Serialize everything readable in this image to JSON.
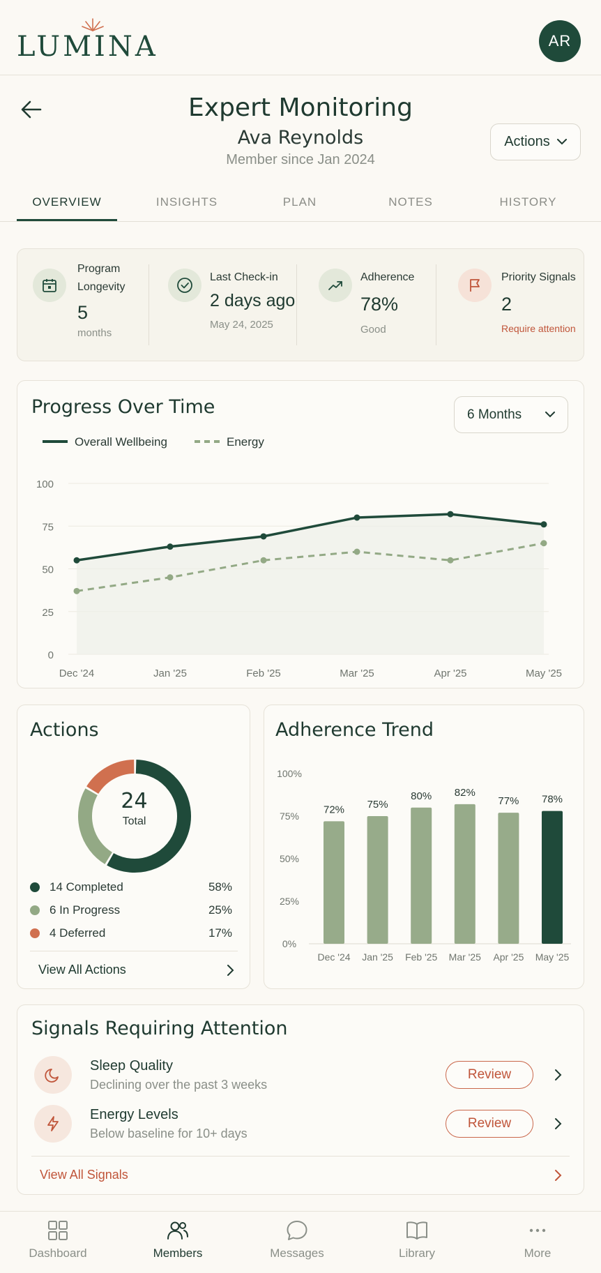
{
  "app": {
    "logo": "LUMINA",
    "avatar_initials": "AR"
  },
  "header": {
    "title": "Expert Monitoring",
    "member_name": "Ava Reynolds",
    "member_since": "Member since Jan 2024",
    "actions_label": "Actions"
  },
  "tabs": [
    {
      "label": "OVERVIEW",
      "active": true
    },
    {
      "label": "INSIGHTS",
      "active": false
    },
    {
      "label": "PLAN",
      "active": false
    },
    {
      "label": "NOTES",
      "active": false
    },
    {
      "label": "HISTORY",
      "active": false
    }
  ],
  "stats": [
    {
      "label_line1": "Program",
      "label_line2": "Longevity",
      "value": "5",
      "sub": "months",
      "icon": "calendar-icon"
    },
    {
      "label": "Last Check-in",
      "value": "2 days ago",
      "sub": "May 24, 2025",
      "icon": "check-circle-icon"
    },
    {
      "label": "Adherence",
      "value": "78%",
      "sub": "Good",
      "icon": "trending-up-icon"
    },
    {
      "label": "Priority Signals",
      "value": "2",
      "sub": "Require attention",
      "icon": "flag-icon"
    }
  ],
  "progress": {
    "title": "Progress Over Time",
    "range_label": "6 Months",
    "legend": [
      "Overall Wellbeing",
      "Energy"
    ]
  },
  "actions_card": {
    "title": "Actions",
    "total": "24",
    "total_label": "Total",
    "items": [
      {
        "label": "14 Completed",
        "pct": "58%",
        "color": "#1F4A3A"
      },
      {
        "label": "6 In Progress",
        "pct": "25%",
        "color": "#93A985"
      },
      {
        "label": "4 Deferred",
        "pct": "17%",
        "color": "#D0704F"
      }
    ],
    "view_all": "View All Actions"
  },
  "trend": {
    "title": "Adherence Trend"
  },
  "signals": {
    "title": "Signals Requiring Attention",
    "items": [
      {
        "title": "Sleep Quality",
        "sub": "Declining over the past 3 weeks",
        "button": "Review",
        "icon": "moon-icon"
      },
      {
        "title": "Energy Levels",
        "sub": "Below baseline for 10+ days",
        "button": "Review",
        "icon": "lightning-icon"
      }
    ],
    "view_all": "View All Signals"
  },
  "nav": [
    {
      "label": "Dashboard",
      "icon": "grid-icon",
      "active": false
    },
    {
      "label": "Members",
      "icon": "users-icon",
      "active": true
    },
    {
      "label": "Messages",
      "icon": "chat-icon",
      "active": false
    },
    {
      "label": "Library",
      "icon": "book-icon",
      "active": false
    },
    {
      "label": "More",
      "icon": "more-icon",
      "active": false
    }
  ],
  "chart_data": [
    {
      "type": "line",
      "title": "Progress Over Time",
      "x": [
        "Dec '24",
        "Jan '25",
        "Feb '25",
        "Mar '25",
        "Apr '25",
        "May '25"
      ],
      "ylim": [
        0,
        100
      ],
      "yticks": [
        "0",
        "25",
        "50",
        "75",
        "100"
      ],
      "series": [
        {
          "name": "Overall Wellbeing",
          "values": [
            55,
            63,
            69,
            80,
            82,
            76
          ],
          "color": "#1F4A3A"
        },
        {
          "name": "Energy",
          "values": [
            37,
            45,
            55,
            60,
            55,
            65
          ],
          "color": "#93A985"
        }
      ],
      "legend": "top-left",
      "grid": true
    },
    {
      "type": "pie",
      "title": "Actions",
      "categories": [
        "Completed",
        "In Progress",
        "Deferred"
      ],
      "values": [
        14,
        6,
        4
      ],
      "colors": [
        "#1F4A3A",
        "#93A985",
        "#D0704F"
      ]
    },
    {
      "type": "bar",
      "title": "Adherence Trend",
      "categories": [
        "Dec '24",
        "Jan '25",
        "Feb '25",
        "Mar '25",
        "Apr '25",
        "May '25"
      ],
      "values": [
        72,
        75,
        80,
        82,
        77,
        78
      ],
      "labels": [
        "72%",
        "75%",
        "80%",
        "82%",
        "77%",
        "78%"
      ],
      "yticks": [
        "0%",
        "25%",
        "50%",
        "75%",
        "100%"
      ],
      "ylim": [
        0,
        100
      ],
      "colors": [
        "#97AB8A",
        "#97AB8A",
        "#97AB8A",
        "#97AB8A",
        "#97AB8A",
        "#1F4A3A"
      ]
    }
  ]
}
